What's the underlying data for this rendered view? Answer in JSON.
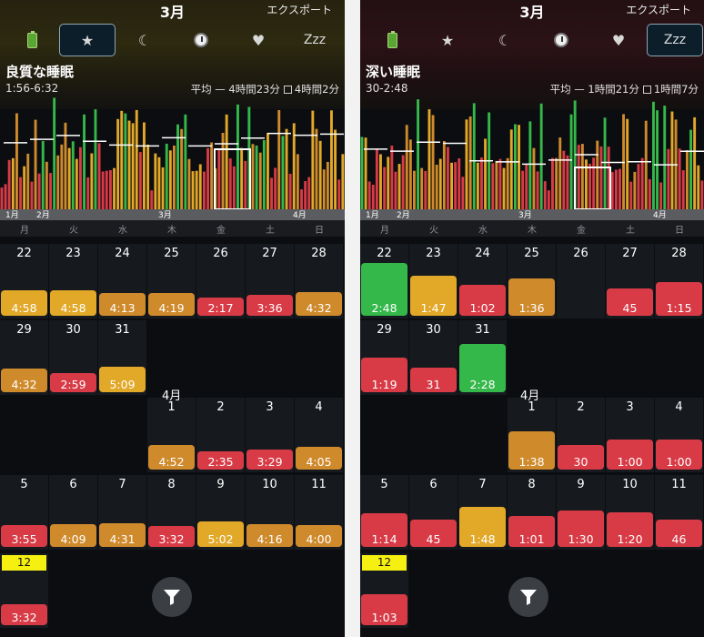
{
  "colors": {
    "gold": "#e2a828",
    "amber": "#cf8a2c",
    "red": "#d83b46",
    "green": "#34b84a",
    "today": "#f6ef12"
  },
  "weekdays": [
    "月",
    "火",
    "水",
    "木",
    "金",
    "土",
    "日"
  ],
  "panels": [
    {
      "month": "3月",
      "export": "エクスポート",
      "tabs": [
        {
          "name": "battery-icon",
          "label": ""
        },
        {
          "name": "star-icon",
          "label": "★"
        },
        {
          "name": "moon-icon",
          "label": "☾"
        },
        {
          "name": "clock-icon",
          "label": ""
        },
        {
          "name": "heart-icon",
          "label": "♥"
        },
        {
          "name": "zzz-icon",
          "label": "Zzz"
        }
      ],
      "selected_tab": 1,
      "title": "良質な睡眠",
      "range": "1:56-6:32",
      "avg_prefix": "平均",
      "avg_value": "4時間23分",
      "avg_compare": "4時間2分",
      "axis_labels": {
        "m1": "1月",
        "m2": "2月",
        "m3": "3月",
        "m4": "4月"
      },
      "april_label": "4月",
      "days": [
        {
          "d": "22",
          "v": "4:58",
          "c": "gold"
        },
        {
          "d": "23",
          "v": "4:58",
          "c": "gold"
        },
        {
          "d": "24",
          "v": "4:13",
          "c": "amber"
        },
        {
          "d": "25",
          "v": "4:19",
          "c": "amber"
        },
        {
          "d": "26",
          "v": "2:17",
          "c": "red"
        },
        {
          "d": "27",
          "v": "3:36",
          "c": "red"
        },
        {
          "d": "28",
          "v": "4:32",
          "c": "amber"
        },
        {
          "d": "29",
          "v": "4:32",
          "c": "amber"
        },
        {
          "d": "30",
          "v": "2:59",
          "c": "red"
        },
        {
          "d": "31",
          "v": "5:09",
          "c": "gold"
        },
        {
          "d": "1",
          "v": "4:52",
          "c": "amber"
        },
        {
          "d": "2",
          "v": "2:35",
          "c": "red"
        },
        {
          "d": "3",
          "v": "3:29",
          "c": "red"
        },
        {
          "d": "4",
          "v": "4:05",
          "c": "amber"
        },
        {
          "d": "5",
          "v": "3:55",
          "c": "red"
        },
        {
          "d": "6",
          "v": "4:09",
          "c": "amber"
        },
        {
          "d": "7",
          "v": "4:31",
          "c": "amber"
        },
        {
          "d": "8",
          "v": "3:32",
          "c": "red"
        },
        {
          "d": "9",
          "v": "5:02",
          "c": "gold"
        },
        {
          "d": "10",
          "v": "4:16",
          "c": "amber"
        },
        {
          "d": "11",
          "v": "4:00",
          "c": "amber"
        },
        {
          "d": "12",
          "v": "3:32",
          "c": "red",
          "today": true
        }
      ]
    },
    {
      "month": "3月",
      "export": "エクスポート",
      "tabs": [
        {
          "name": "battery-icon",
          "label": ""
        },
        {
          "name": "star-icon",
          "label": "★"
        },
        {
          "name": "moon-icon",
          "label": "☾"
        },
        {
          "name": "clock-icon",
          "label": ""
        },
        {
          "name": "heart-icon",
          "label": "♥"
        },
        {
          "name": "zzz-icon",
          "label": "Zzz"
        }
      ],
      "selected_tab": 5,
      "title": "深い睡眠",
      "range": "30-2:48",
      "avg_prefix": "平均",
      "avg_value": "1時間21分",
      "avg_compare": "1時間7分",
      "axis_labels": {
        "m1": "1月",
        "m2": "2月",
        "m3": "3月",
        "m4": "4月"
      },
      "april_label": "4月",
      "days": [
        {
          "d": "22",
          "v": "2:48",
          "c": "green"
        },
        {
          "d": "23",
          "v": "1:47",
          "c": "gold"
        },
        {
          "d": "24",
          "v": "1:02",
          "c": "red"
        },
        {
          "d": "25",
          "v": "1:36",
          "c": "amber"
        },
        {
          "d": "26",
          "v": "",
          "c": "none"
        },
        {
          "d": "27",
          "v": "45",
          "c": "red"
        },
        {
          "d": "28",
          "v": "1:15",
          "c": "red"
        },
        {
          "d": "29",
          "v": "1:19",
          "c": "red"
        },
        {
          "d": "30",
          "v": "31",
          "c": "red"
        },
        {
          "d": "31",
          "v": "2:28",
          "c": "green"
        },
        {
          "d": "1",
          "v": "1:38",
          "c": "amber"
        },
        {
          "d": "2",
          "v": "30",
          "c": "red"
        },
        {
          "d": "3",
          "v": "1:00",
          "c": "red"
        },
        {
          "d": "4",
          "v": "1:00",
          "c": "red"
        },
        {
          "d": "5",
          "v": "1:14",
          "c": "red"
        },
        {
          "d": "6",
          "v": "45",
          "c": "red"
        },
        {
          "d": "7",
          "v": "1:48",
          "c": "gold"
        },
        {
          "d": "8",
          "v": "1:01",
          "c": "red"
        },
        {
          "d": "9",
          "v": "1:30",
          "c": "red"
        },
        {
          "d": "10",
          "v": "1:20",
          "c": "red"
        },
        {
          "d": "11",
          "v": "46",
          "c": "red"
        },
        {
          "d": "12",
          "v": "1:03",
          "c": "red",
          "today": true
        }
      ]
    }
  ]
}
